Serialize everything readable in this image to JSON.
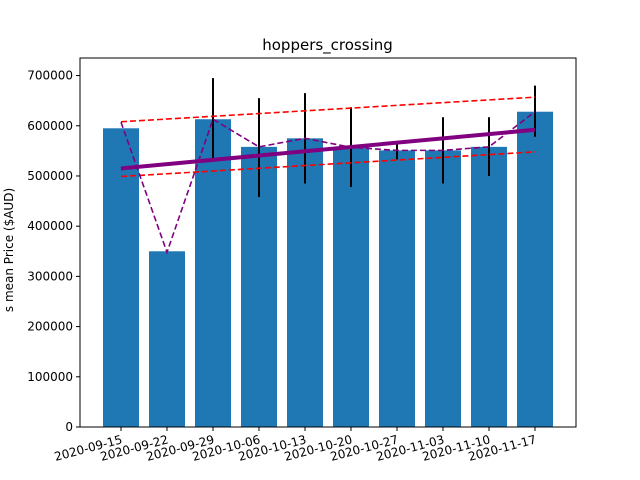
{
  "chart_data": {
    "type": "bar",
    "title": "hoppers_crossing",
    "ylabel": "s mean Price ($AUD)",
    "xlabel": "",
    "ylim": [
      0,
      735000
    ],
    "yticks": [
      0,
      100000,
      200000,
      300000,
      400000,
      500000,
      600000,
      700000
    ],
    "categories": [
      "2020-09-15",
      "2020-09-22",
      "2020-09-29",
      "2020-10-06",
      "2020-10-13",
      "2020-10-20",
      "2020-10-27",
      "2020-11-03",
      "2020-11-10",
      "2020-11-17"
    ],
    "values": [
      595000,
      350000,
      613000,
      558000,
      575000,
      557000,
      551000,
      551000,
      558000,
      628000
    ],
    "error_bars": [
      {
        "low": null,
        "high": null
      },
      {
        "low": null,
        "high": null
      },
      {
        "low": 535000,
        "high": 695000
      },
      {
        "low": 458000,
        "high": 655000
      },
      {
        "low": 485000,
        "high": 665000
      },
      {
        "low": 478000,
        "high": 637000
      },
      {
        "low": 533000,
        "high": 568000
      },
      {
        "low": 485000,
        "high": 617000
      },
      {
        "low": 500000,
        "high": 617000
      },
      {
        "low": 578000,
        "high": 680000
      }
    ],
    "moving_average": [
      607000,
      348000,
      613000,
      558000,
      575000,
      557000,
      551000,
      551000,
      558000,
      628000
    ],
    "trend_line": {
      "start": 515000,
      "end": 592000
    },
    "upper_band": {
      "start": 608000,
      "end": 657000
    },
    "lower_band": {
      "start": 499000,
      "end": 548000
    },
    "colors": {
      "bar": "#1f77b4",
      "error": "#000000",
      "moving_average": "#800080",
      "trend": "#800080",
      "band": "#ff0000"
    },
    "grid": false
  }
}
